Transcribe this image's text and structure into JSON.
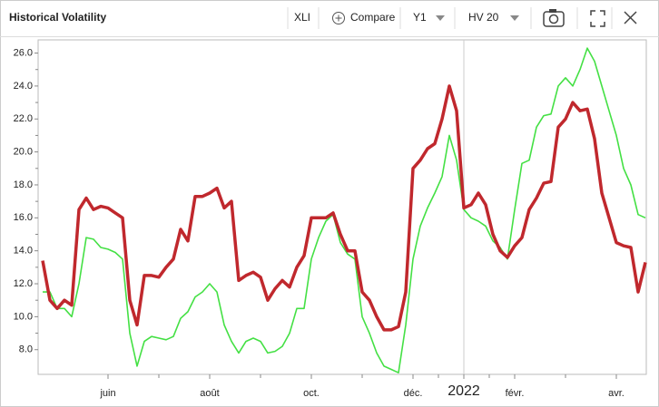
{
  "toolbar": {
    "symbol": "XLI",
    "compare": "Compare",
    "period": "Y1",
    "indicator": "HV 20"
  },
  "chart_data": {
    "type": "line",
    "title": "Historical Volatility",
    "categories": [
      null,
      null,
      null,
      null,
      null,
      null,
      null,
      null,
      null,
      "juin",
      null,
      null,
      null,
      null,
      null,
      null,
      null,
      null,
      null,
      null,
      null,
      null,
      null,
      "août",
      null,
      null,
      null,
      null,
      null,
      null,
      null,
      null,
      null,
      null,
      null,
      null,
      null,
      "oct.",
      null,
      null,
      null,
      null,
      null,
      null,
      null,
      null,
      null,
      null,
      null,
      null,
      null,
      "déc.",
      null,
      null,
      null,
      null,
      null,
      null,
      "2022",
      null,
      null,
      null,
      null,
      null,
      null,
      "févr.",
      null,
      null,
      null,
      null,
      null,
      null,
      null,
      null,
      null,
      null,
      null,
      null,
      null,
      "avr.",
      null,
      null,
      null,
      null
    ],
    "series": [
      {
        "color": "#44e044",
        "values": [
          11.5,
          11.5,
          10.5,
          10.5,
          10.0,
          12.0,
          14.8,
          14.7,
          14.2,
          14.1,
          13.9,
          13.5,
          9.0,
          7.0,
          8.5,
          8.8,
          8.7,
          8.6,
          8.8,
          9.9,
          10.3,
          11.2,
          11.5,
          12.0,
          11.5,
          9.5,
          8.5,
          7.8,
          8.5,
          8.7,
          8.5,
          7.8,
          7.9,
          8.2,
          9.0,
          10.5,
          10.5,
          13.5,
          14.8,
          15.8,
          16.2,
          14.5,
          13.8,
          13.5,
          10.0,
          9.0,
          7.8,
          7.0,
          6.8,
          6.6,
          9.5,
          13.5,
          15.5,
          16.6,
          17.5,
          18.5,
          21.0,
          19.5,
          16.5,
          16.0,
          15.8,
          15.5,
          14.6,
          14.2,
          13.5,
          16.5,
          19.3,
          19.5,
          21.5,
          22.2,
          22.3,
          24.0,
          24.5,
          24.0,
          25.0,
          26.3,
          25.5,
          24.0,
          22.5,
          21.0,
          19.0,
          18.0,
          16.2,
          16.0
        ]
      },
      {
        "color": "#c0282d",
        "values": [
          13.4,
          11.0,
          10.5,
          11.0,
          10.7,
          16.5,
          17.2,
          16.5,
          16.7,
          16.6,
          16.3,
          16.0,
          11.0,
          9.5,
          12.5,
          12.5,
          12.4,
          13.0,
          13.5,
          15.3,
          14.6,
          17.3,
          17.3,
          17.5,
          17.8,
          16.6,
          17.0,
          12.2,
          12.5,
          12.7,
          12.4,
          11.0,
          11.7,
          12.2,
          11.8,
          13.0,
          13.7,
          16.0,
          16.0,
          16.0,
          16.3,
          15.0,
          14.0,
          14.0,
          11.5,
          11.0,
          10.0,
          9.2,
          9.2,
          9.4,
          11.5,
          19.0,
          19.5,
          20.2,
          20.5,
          22.0,
          24.0,
          22.5,
          16.6,
          16.8,
          17.5,
          16.8,
          15.0,
          14.0,
          13.6,
          14.3,
          14.8,
          16.5,
          17.2,
          18.1,
          18.2,
          21.5,
          22.0,
          23.0,
          22.5,
          22.6,
          20.8,
          17.5,
          16.0,
          14.5,
          14.3,
          14.2,
          11.5,
          13.3
        ]
      }
    ],
    "ylim": [
      6.5,
      26.8
    ],
    "yticks": [
      {
        "value": 8,
        "label": "8.0"
      },
      {
        "value": 10,
        "label": "10.0"
      },
      {
        "value": 12,
        "label": "12.0"
      },
      {
        "value": 14,
        "label": "14.0"
      },
      {
        "value": 16,
        "label": "16.0"
      },
      {
        "value": 18,
        "label": "18.0"
      },
      {
        "value": 20,
        "label": "20.0"
      },
      {
        "value": 22,
        "label": "22.0"
      },
      {
        "value": 24,
        "label": "24.0"
      },
      {
        "value": 26,
        "label": "26.0"
      }
    ]
  }
}
